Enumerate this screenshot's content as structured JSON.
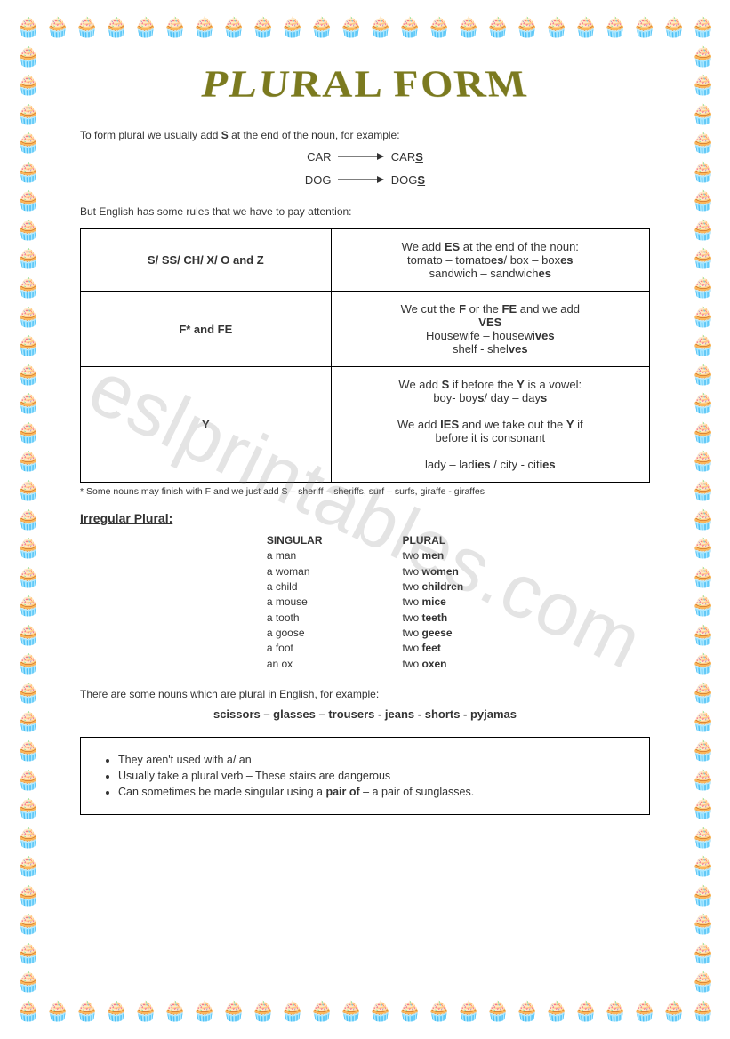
{
  "title": "PLURAL FORM",
  "colors": {
    "title_color": "#7b7a1f",
    "text_color": "#333333",
    "border_icon_color": "#c97b2a",
    "background": "#ffffff",
    "table_border": "#000000"
  },
  "intro1_pre": "To form plural we usually add ",
  "intro1_bold": "S",
  "intro1_post": " at the end of the noun, for example:",
  "examples": [
    {
      "from": "CAR",
      "to_pre": "CAR",
      "to_bold": "S"
    },
    {
      "from": "DOG",
      "to_pre": "DOG",
      "to_bold": "S"
    }
  ],
  "intro2": "But English has some rules that we have to pay attention:",
  "rules_table": {
    "rows": [
      {
        "left": "S/ SS/ CH/ X/ O and Z",
        "right_html": "We add <b>ES</b> at the end of the noun:<br>tomato – tomato<b>es</b>/ box – box<b>es</b><br>sandwich – sandwich<b>es</b>"
      },
      {
        "left": "F* and FE",
        "right_html": "We cut the <b>F</b> or the <b>FE</b> and we add<br><b>VES</b><br>Housewife – housewi<b>ves</b><br>shelf - shel<b>ves</b>"
      },
      {
        "left": "Y",
        "right_html": "We add <b>S</b> if before the <b>Y</b> is a vowel:<br>boy- boy<b>s</b>/ day – day<b>s</b><br><br>We add <b>IES</b> and we take out the <b>Y</b> if<br>before it is consonant<br><br>lady – lad<b>ies</b> / city - cit<b>ies</b>"
      }
    ]
  },
  "footnote": "* Some nouns may finish with F and we just add S – sheriff – sheriffs, surf – surfs, giraffe - giraffes",
  "irregular_title": "Irregular Plural:",
  "irregular": {
    "header_singular": "SINGULAR",
    "header_plural": "PLURAL",
    "rows": [
      {
        "s": "a man",
        "p_pre": "two ",
        "p_bold": "men"
      },
      {
        "s": "a woman",
        "p_pre": "two ",
        "p_bold": "women"
      },
      {
        "s": "a child",
        "p_pre": "two ",
        "p_bold": "children"
      },
      {
        "s": "a mouse",
        "p_pre": "two ",
        "p_bold": "mice"
      },
      {
        "s": "a tooth",
        "p_pre": "two ",
        "p_bold": "teeth"
      },
      {
        "s": "a goose",
        "p_pre": "two ",
        "p_bold": "geese"
      },
      {
        "s": "a foot",
        "p_pre": "two ",
        "p_bold": "feet"
      },
      {
        "s": "an ox",
        "p_pre": "two ",
        "p_bold": "oxen"
      }
    ]
  },
  "plural_only_intro": "There are some nouns which are plural in English, for example:",
  "plural_only_list": "scissors – glasses – trousers -  jeans -  shorts -  pyjamas",
  "notes": [
    "They aren't used with a/ an",
    "Usually take a plural verb – These stairs are dangerous",
    "Can sometimes be made singular using a <b>pair of</b> – a pair of sunglasses."
  ],
  "watermark": "eslprintables.com",
  "border": {
    "icon": "🧁",
    "count_horizontal": 24,
    "count_vertical": 35,
    "spacing": 32
  }
}
